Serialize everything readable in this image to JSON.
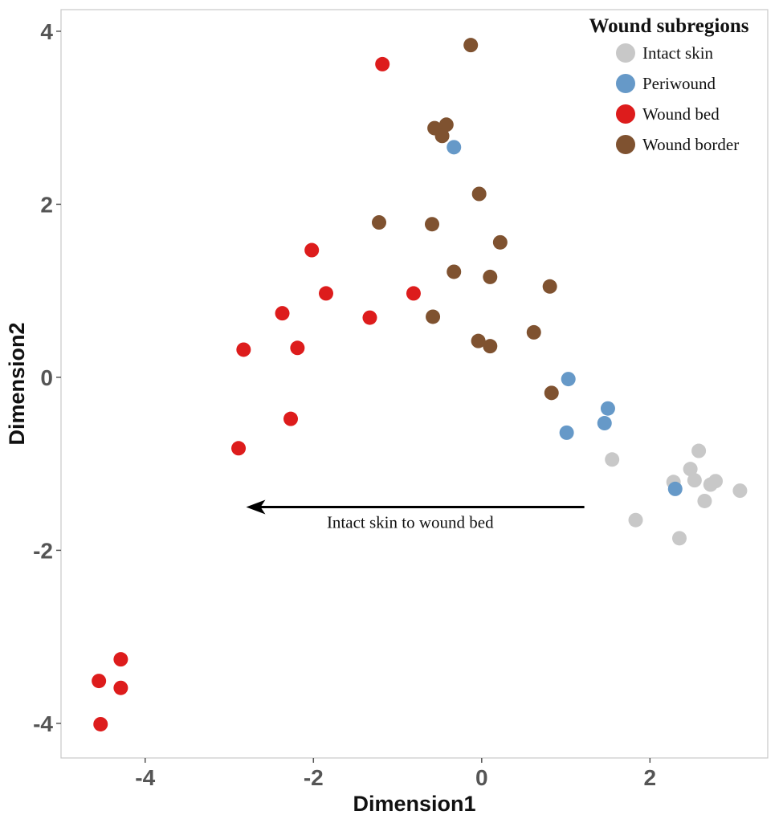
{
  "chart_data": {
    "type": "scatter",
    "title": "",
    "xlabel": "Dimension1",
    "ylabel": "Dimension2",
    "xlim": [
      -5.0,
      3.4
    ],
    "ylim": [
      -4.4,
      4.25
    ],
    "xticks": [
      -4,
      -2,
      0,
      2
    ],
    "yticks": [
      -4,
      -2,
      0,
      2,
      4
    ],
    "xtick_labels": [
      "-4",
      "-2",
      "0",
      "2"
    ],
    "ytick_labels": [
      "-4",
      "-2",
      "0",
      "2",
      "4"
    ],
    "grid": false,
    "legend": {
      "title": "Wound subregions",
      "position": "top-right"
    },
    "series": [
      {
        "name": "Intact skin",
        "color": "#c8c8c8",
        "points": [
          [
            1.55,
            -0.95
          ],
          [
            2.58,
            -0.85
          ],
          [
            2.48,
            -1.06
          ],
          [
            2.28,
            -1.21
          ],
          [
            2.53,
            -1.19
          ],
          [
            2.78,
            -1.2
          ],
          [
            2.72,
            -1.24
          ],
          [
            3.07,
            -1.31
          ],
          [
            2.65,
            -1.43
          ],
          [
            1.83,
            -1.65
          ],
          [
            2.35,
            -1.86
          ]
        ]
      },
      {
        "name": "Periwound",
        "color": "#6699c8",
        "points": [
          [
            -0.33,
            2.66
          ],
          [
            1.03,
            -0.02
          ],
          [
            1.5,
            -0.36
          ],
          [
            1.46,
            -0.53
          ],
          [
            1.01,
            -0.64
          ],
          [
            2.3,
            -1.29
          ]
        ]
      },
      {
        "name": "Wound bed",
        "color": "#dd1c1c",
        "points": [
          [
            -1.18,
            3.62
          ],
          [
            -2.02,
            1.47
          ],
          [
            -1.85,
            0.97
          ],
          [
            -0.81,
            0.97
          ],
          [
            -2.37,
            0.74
          ],
          [
            -1.33,
            0.69
          ],
          [
            -2.83,
            0.32
          ],
          [
            -2.19,
            0.34
          ],
          [
            -2.27,
            -0.48
          ],
          [
            -2.89,
            -0.82
          ],
          [
            -4.29,
            -3.26
          ],
          [
            -4.55,
            -3.51
          ],
          [
            -4.29,
            -3.59
          ],
          [
            -4.53,
            -4.01
          ]
        ]
      },
      {
        "name": "Wound border",
        "color": "#7f5230",
        "points": [
          [
            -0.13,
            3.84
          ],
          [
            -0.56,
            2.88
          ],
          [
            -0.42,
            2.92
          ],
          [
            -0.47,
            2.79
          ],
          [
            -0.03,
            2.12
          ],
          [
            -1.22,
            1.79
          ],
          [
            -0.59,
            1.77
          ],
          [
            0.22,
            1.56
          ],
          [
            -0.33,
            1.22
          ],
          [
            0.1,
            1.16
          ],
          [
            0.81,
            1.05
          ],
          [
            -0.58,
            0.7
          ],
          [
            -0.04,
            0.42
          ],
          [
            0.1,
            0.36
          ],
          [
            0.62,
            0.52
          ],
          [
            0.83,
            -0.18
          ]
        ]
      }
    ],
    "annotations": [
      {
        "type": "arrow",
        "from": [
          1.22,
          -1.5
        ],
        "to": [
          -2.8,
          -1.5
        ],
        "color": "#000000"
      },
      {
        "type": "text",
        "text": "Intact skin to wound bed",
        "x": -0.85,
        "y": -1.74
      }
    ]
  }
}
